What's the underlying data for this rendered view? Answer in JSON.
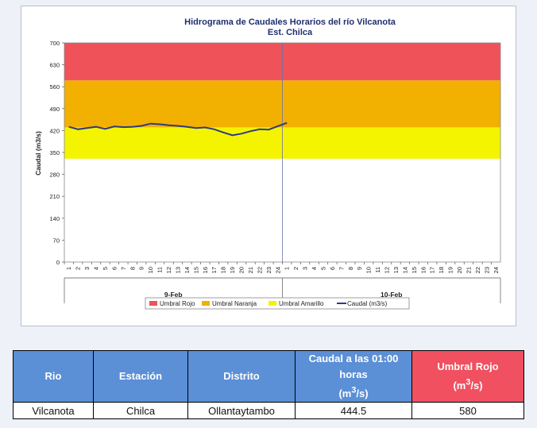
{
  "chart_data": {
    "type": "line",
    "title": "Hidrograma de Caudales Horarios del río Vilcanota",
    "subtitle": "Est. Chilca",
    "ylabel": "Caudal  (m3/s)",
    "ylim": [
      0,
      700
    ],
    "yticks": [
      0,
      70,
      140,
      210,
      280,
      350,
      420,
      490,
      560,
      630,
      700
    ],
    "x_hours": [
      "1",
      "2",
      "3",
      "4",
      "5",
      "6",
      "7",
      "8",
      "9",
      "10",
      "11",
      "12",
      "13",
      "14",
      "15",
      "16",
      "17",
      "18",
      "19",
      "20",
      "21",
      "22",
      "23",
      "24",
      "1",
      "2",
      "3",
      "4",
      "5",
      "6",
      "7",
      "8",
      "9",
      "10",
      "11",
      "12",
      "13",
      "14",
      "15",
      "16",
      "17",
      "18",
      "19",
      "20",
      "21",
      "22",
      "23",
      "24"
    ],
    "day_labels": [
      "9-Feb",
      "10-Feb"
    ],
    "thresholds": [
      {
        "name": "Umbral Rojo",
        "from": 580,
        "to": 700,
        "color": "#f0525a"
      },
      {
        "name": "Umbral Naranja",
        "from": 430,
        "to": 580,
        "color": "#f2b000"
      },
      {
        "name": "Umbral Amarillo",
        "from": 330,
        "to": 430,
        "color": "#f4f400"
      }
    ],
    "series": [
      {
        "name": "Caudal (m3/s)",
        "color": "#2e3a80",
        "values": [
          432,
          424,
          428,
          432,
          425,
          433,
          431,
          432,
          435,
          442,
          440,
          437,
          435,
          432,
          428,
          430,
          424,
          414,
          405,
          410,
          418,
          424,
          423,
          434,
          444.5
        ]
      }
    ],
    "legend": [
      "Umbral Rojo",
      "Umbral Naranja",
      "Umbral Amarillo",
      "Caudal (m3/s)"
    ],
    "legend_position": "bottom"
  },
  "table": {
    "headers": [
      "Rio",
      "Estación",
      "Distrito",
      "Caudal a las 01:00 horas",
      "Umbral Rojo"
    ],
    "header_units": [
      "",
      "",
      "",
      "(m3/s)",
      "(m3/s)"
    ],
    "row": [
      "Vilcanota",
      "Chilca",
      "Ollantaytambo",
      "444.5",
      "580"
    ]
  }
}
